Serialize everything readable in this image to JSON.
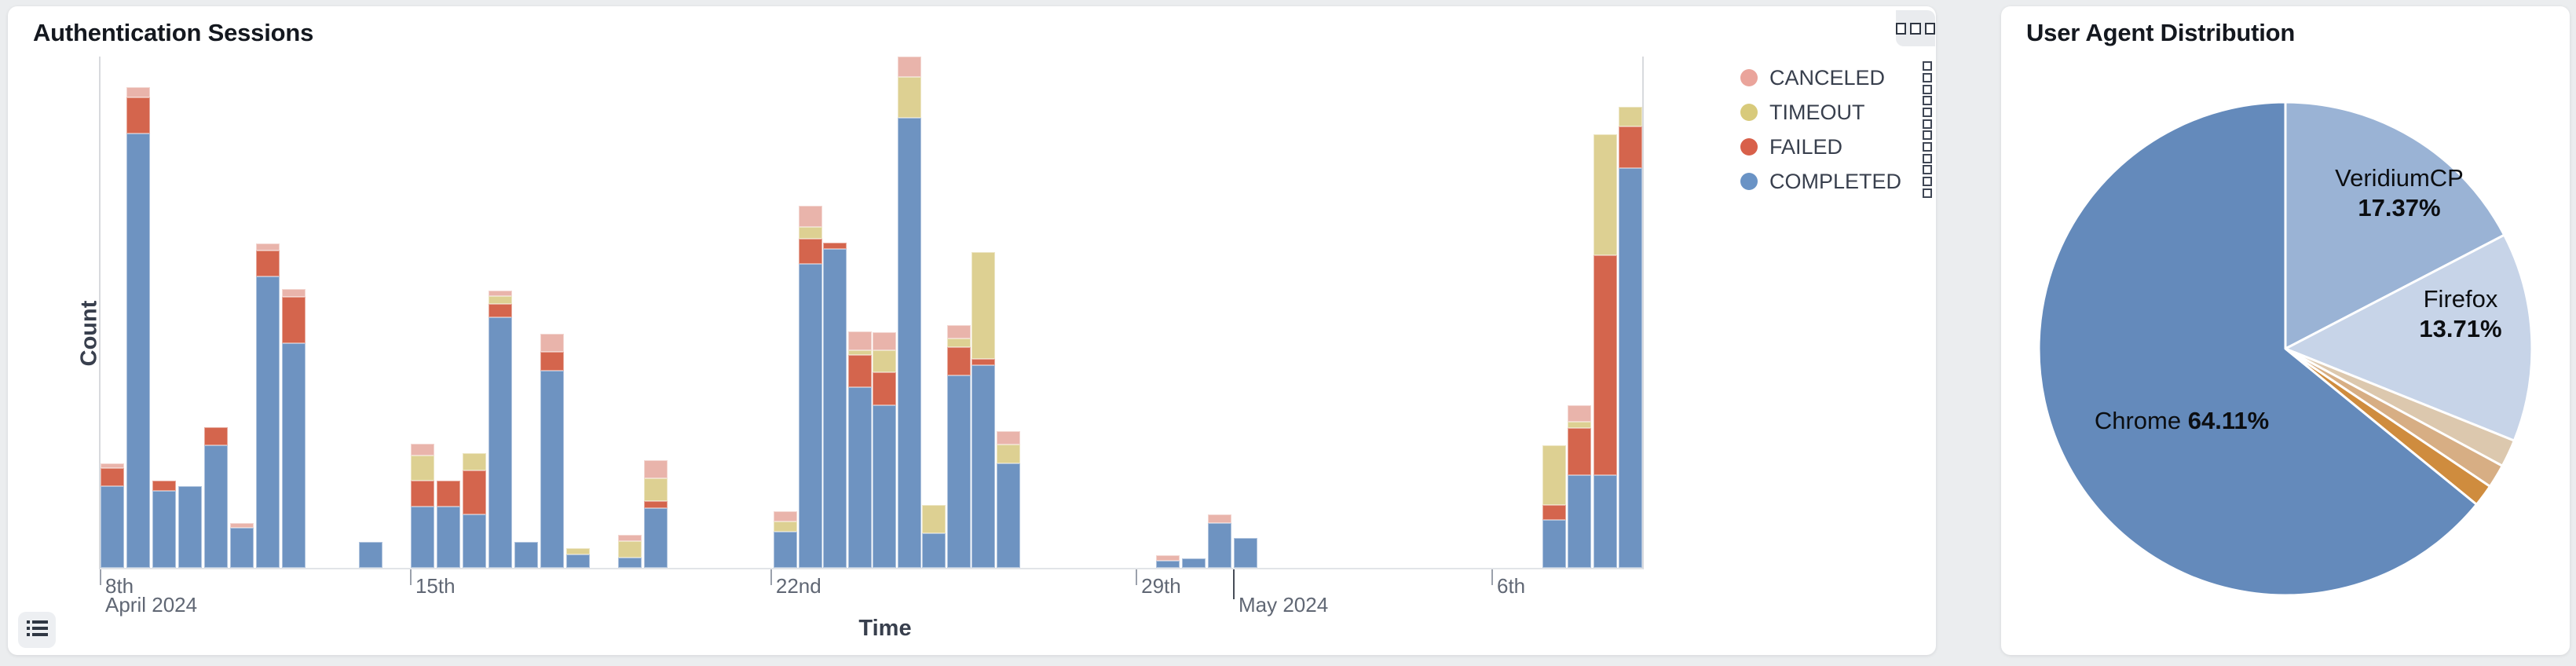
{
  "page": {
    "background": "#ebedef"
  },
  "left_panel": {
    "title": "Authentication Sessions",
    "y_axis_label": "Count",
    "x_axis_label": "Time",
    "legend": [
      {
        "label": "CANCELED",
        "color": "#eaa49b"
      },
      {
        "label": "TIMEOUT",
        "color": "#d8ca7b"
      },
      {
        "label": "FAILED",
        "color": "#d8604a"
      },
      {
        "label": "COMPLETED",
        "color": "#6a93c5"
      }
    ]
  },
  "right_panel": {
    "title": "User Agent Distribution",
    "pie_labels": {
      "veridium": {
        "name": "VeridiumCP",
        "pct": "17.37%"
      },
      "firefox": {
        "name": "Firefox",
        "pct": "13.71%"
      },
      "chrome": {
        "name": "Chrome",
        "pct": "64.11%"
      }
    }
  },
  "chart_data": [
    {
      "type": "bar",
      "stacked": true,
      "title": "Authentication Sessions",
      "xlabel": "Time",
      "ylabel": "Count",
      "legend_position": "right",
      "grid": false,
      "series_order": [
        "COMPLETED",
        "FAILED",
        "TIMEOUT",
        "CANCELED"
      ],
      "colors": {
        "COMPLETED": "#6e93c1",
        "FAILED": "#d4654d",
        "TIMEOUT": "#ddd092",
        "CANCELED": "#e9b4ab"
      },
      "y_axis": {
        "label": "Count",
        "tick_labels_visible": false,
        "max_relative": 100
      },
      "x_axis_ticks": [
        {
          "pos": 0.0,
          "label": "8th",
          "sub": "April 2024",
          "long_tick": false
        },
        {
          "pos": 0.2012,
          "label": "15th",
          "long_tick": false
        },
        {
          "pos": 0.435,
          "label": "22nd",
          "long_tick": false
        },
        {
          "pos": 0.672,
          "label": "29th",
          "long_tick": false
        },
        {
          "pos": 0.7351,
          "label": "May 2024",
          "row": 2,
          "long_tick": true
        },
        {
          "pos": 0.9027,
          "label": "6th",
          "long_tick": false
        }
      ],
      "bars_note": "values are relative counts, 100 = full plot height; x = fraction of plot width (time axis Apr 8 - May 10 2024)",
      "bars": [
        {
          "x": 0.0,
          "completed": 16.0,
          "failed": 3.5,
          "timeout": 0,
          "canceled": 1.0
        },
        {
          "x": 0.0168,
          "completed": 85.0,
          "failed": 7.0,
          "timeout": 0,
          "canceled": 2.0
        },
        {
          "x": 0.0336,
          "completed": 15.0,
          "failed": 2.0,
          "timeout": 0,
          "canceled": 0
        },
        {
          "x": 0.0504,
          "completed": 16.0,
          "failed": 0,
          "timeout": 0,
          "canceled": 0
        },
        {
          "x": 0.0672,
          "completed": 24.0,
          "failed": 3.5,
          "timeout": 0,
          "canceled": 0
        },
        {
          "x": 0.084,
          "completed": 7.8,
          "failed": 0,
          "timeout": 0,
          "canceled": 1.0
        },
        {
          "x": 0.1009,
          "completed": 57.0,
          "failed": 5.0,
          "timeout": 0,
          "canceled": 1.5
        },
        {
          "x": 0.1177,
          "completed": 44.0,
          "failed": 9.0,
          "timeout": 0,
          "canceled": 1.5
        },
        {
          "x": 0.1676,
          "completed": 5.0,
          "failed": 0,
          "timeout": 0,
          "canceled": 0
        },
        {
          "x": 0.2012,
          "completed": 12.0,
          "failed": 5.0,
          "timeout": 5.0,
          "canceled": 2.3
        },
        {
          "x": 0.218,
          "completed": 12.0,
          "failed": 5.0,
          "timeout": 0,
          "canceled": 0
        },
        {
          "x": 0.2348,
          "completed": 10.5,
          "failed": 8.5,
          "timeout": 3.5,
          "canceled": 0
        },
        {
          "x": 0.2516,
          "completed": 49.0,
          "failed": 2.6,
          "timeout": 1.6,
          "canceled": 1.0
        },
        {
          "x": 0.2684,
          "completed": 5.0,
          "failed": 0,
          "timeout": 0,
          "canceled": 0
        },
        {
          "x": 0.2852,
          "completed": 38.6,
          "failed": 3.6,
          "timeout": 0,
          "canceled": 3.6
        },
        {
          "x": 0.3021,
          "completed": 2.6,
          "failed": 0,
          "timeout": 1.3,
          "canceled": 0
        },
        {
          "x": 0.3357,
          "completed": 2.0,
          "failed": 0,
          "timeout": 3.2,
          "canceled": 1.3
        },
        {
          "x": 0.3525,
          "completed": 11.7,
          "failed": 1.3,
          "timeout": 4.5,
          "canceled": 3.6
        },
        {
          "x": 0.4365,
          "completed": 7.0,
          "failed": 0,
          "timeout": 2.0,
          "canceled": 2.0
        },
        {
          "x": 0.4528,
          "completed": 59.4,
          "failed": 4.9,
          "timeout": 2.3,
          "canceled": 4.2
        },
        {
          "x": 0.4687,
          "completed": 62.3,
          "failed": 1.3,
          "timeout": 0,
          "canceled": 0
        },
        {
          "x": 0.485,
          "completed": 35.4,
          "failed": 6.2,
          "timeout": 1.0,
          "canceled": 3.6
        },
        {
          "x": 0.5008,
          "completed": 31.8,
          "failed": 6.5,
          "timeout": 4.2,
          "canceled": 3.6
        },
        {
          "x": 0.5171,
          "completed": 88.0,
          "failed": 0,
          "timeout": 8.0,
          "canceled": 4.0
        },
        {
          "x": 0.5329,
          "completed": 6.8,
          "failed": 0,
          "timeout": 5.5,
          "canceled": 0
        },
        {
          "x": 0.5492,
          "completed": 37.7,
          "failed": 5.5,
          "timeout": 1.6,
          "canceled": 2.6
        },
        {
          "x": 0.565,
          "completed": 39.6,
          "failed": 1.3,
          "timeout": 20.8,
          "canceled": 0
        },
        {
          "x": 0.5813,
          "completed": 20.5,
          "failed": 0,
          "timeout": 3.6,
          "canceled": 2.6
        },
        {
          "x": 0.6847,
          "completed": 1.4,
          "failed": 0,
          "timeout": 0,
          "canceled": 1.1
        },
        {
          "x": 0.7015,
          "completed": 1.9,
          "failed": 0,
          "timeout": 0,
          "canceled": 0
        },
        {
          "x": 0.7183,
          "completed": 8.8,
          "failed": 0,
          "timeout": 0,
          "canceled": 1.6
        },
        {
          "x": 0.7351,
          "completed": 5.8,
          "failed": 0,
          "timeout": 0,
          "canceled": 0
        },
        {
          "x": 0.9352,
          "completed": 9.4,
          "failed": 2.9,
          "timeout": 11.7,
          "canceled": 0
        },
        {
          "x": 0.9515,
          "completed": 18.2,
          "failed": 9.1,
          "timeout": 1.3,
          "canceled": 3.2
        },
        {
          "x": 0.9683,
          "completed": 18.2,
          "failed": 42.9,
          "timeout": 23.7,
          "canceled": 0
        },
        {
          "x": 0.9846,
          "completed": 78.2,
          "failed": 8.1,
          "timeout": 3.9,
          "canceled": 0
        }
      ]
    },
    {
      "type": "pie",
      "title": "User Agent Distribution",
      "start_angle_deg_from_top": 0,
      "direction": "clockwise",
      "slices": [
        {
          "label": "VeridiumCP",
          "value": 17.37,
          "color": "#9ab3d5",
          "label_visible": true
        },
        {
          "label": "Firefox",
          "value": 13.71,
          "color": "#c7d4e8",
          "label_visible": true
        },
        {
          "label": "",
          "value": 1.8,
          "color": "#dcc8ae",
          "label_visible": false
        },
        {
          "label": "",
          "value": 1.55,
          "color": "#d7ae84",
          "label_visible": false
        },
        {
          "label": "",
          "value": 1.45,
          "color": "#cf8c3e",
          "label_visible": false
        },
        {
          "label": "Chrome",
          "value": 64.11,
          "color": "#648abb",
          "label_visible": true
        }
      ]
    }
  ]
}
